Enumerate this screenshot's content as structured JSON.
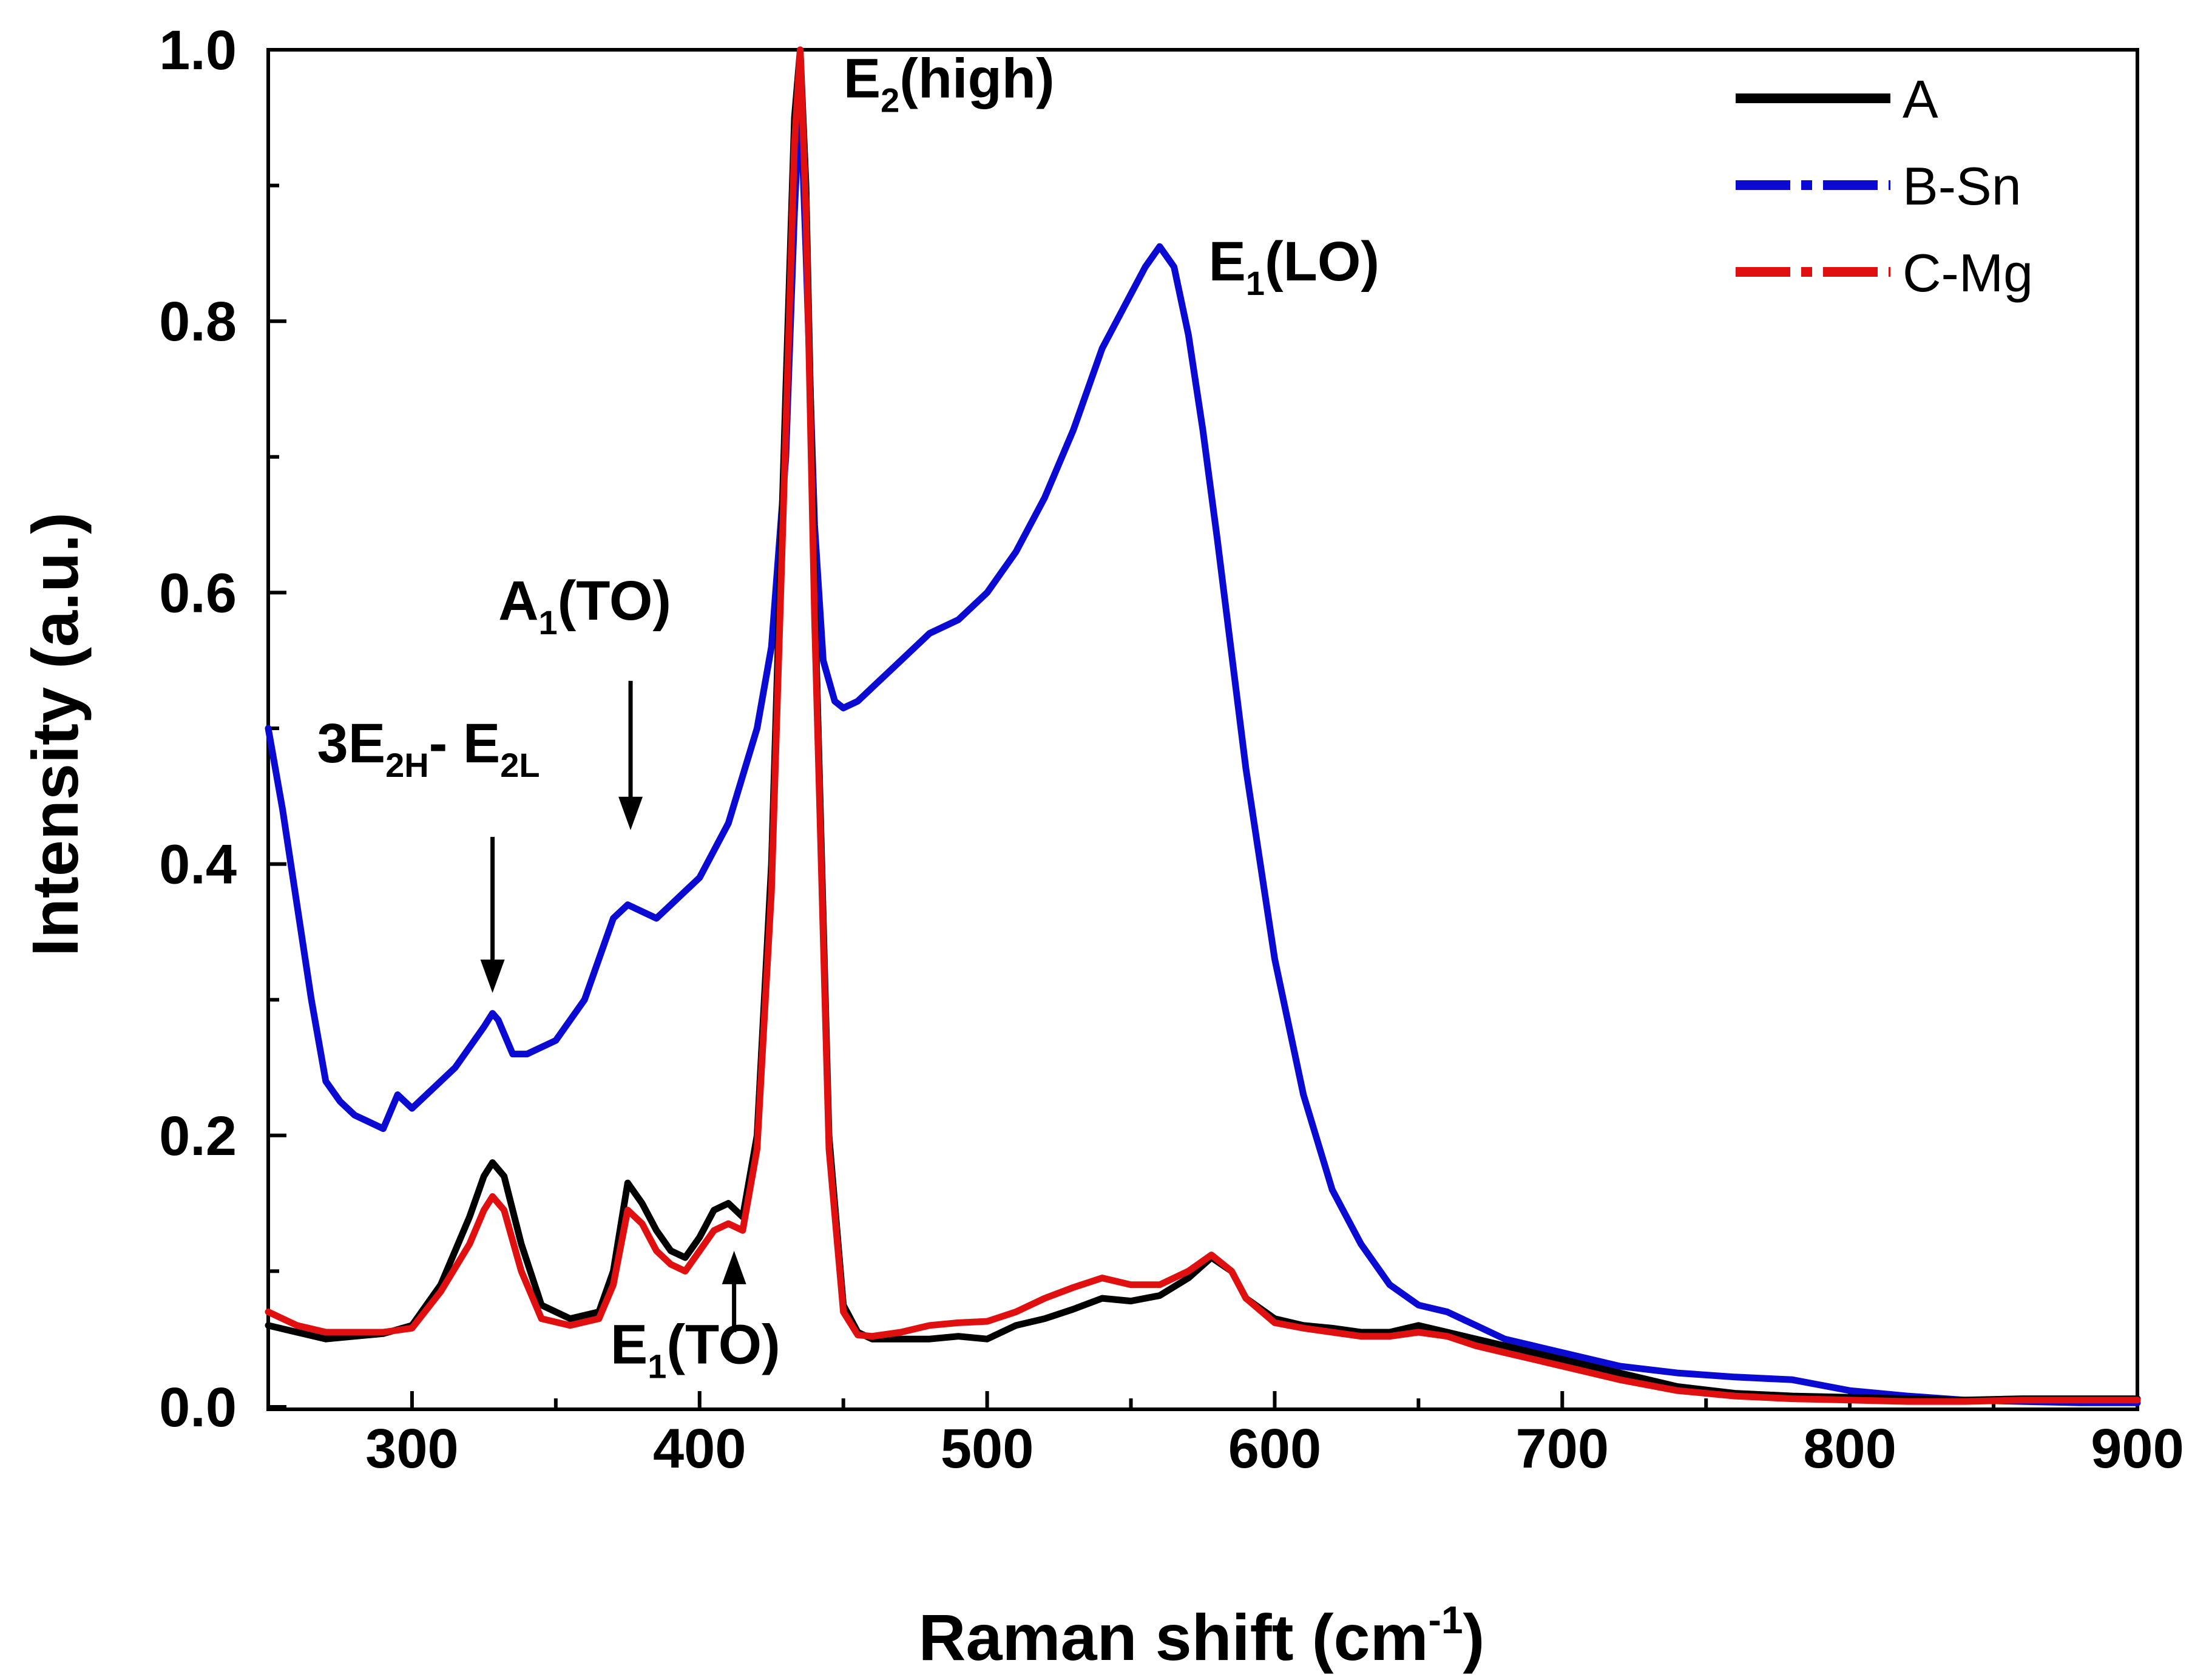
{
  "chart_data": {
    "type": "line",
    "title": "",
    "xlabel": "Raman shift (cm",
    "xlabel_sup": "-1",
    "xlabel_close": ")",
    "ylabel": "Intensity (a.u.)",
    "xlim": [
      250,
      900
    ],
    "ylim": [
      0.0,
      1.0
    ],
    "xticks": [
      300,
      400,
      500,
      600,
      700,
      800,
      900
    ],
    "xtick_labels": [
      "300",
      "400",
      "500",
      "600",
      "700",
      "800",
      "900"
    ],
    "yticks": [
      0.0,
      0.2,
      0.4,
      0.6,
      0.8,
      1.0
    ],
    "ytick_labels": [
      "0.0",
      "0.2",
      "0.4",
      "0.6",
      "0.8",
      "1.0"
    ],
    "legend_position": "top-right",
    "series": [
      {
        "name": "A",
        "color": "#000000",
        "style": "solid",
        "x": [
          250,
          260,
          270,
          280,
          290,
          300,
          310,
          320,
          325,
          328,
          332,
          338,
          345,
          355,
          365,
          370,
          375,
          380,
          385,
          390,
          395,
          400,
          405,
          410,
          415,
          420,
          425,
          430,
          433,
          435,
          437,
          440,
          445,
          450,
          455,
          460,
          470,
          480,
          490,
          500,
          510,
          520,
          530,
          540,
          550,
          560,
          570,
          578,
          585,
          590,
          600,
          610,
          620,
          630,
          640,
          650,
          660,
          670,
          680,
          690,
          700,
          720,
          740,
          760,
          780,
          800,
          820,
          840,
          860,
          880,
          900
        ],
        "y": [
          0.06,
          0.055,
          0.05,
          0.052,
          0.054,
          0.06,
          0.09,
          0.14,
          0.17,
          0.18,
          0.17,
          0.12,
          0.075,
          0.065,
          0.07,
          0.1,
          0.165,
          0.15,
          0.13,
          0.115,
          0.11,
          0.125,
          0.145,
          0.15,
          0.14,
          0.2,
          0.4,
          0.75,
          0.95,
          1.0,
          0.9,
          0.6,
          0.2,
          0.075,
          0.055,
          0.05,
          0.05,
          0.05,
          0.052,
          0.05,
          0.06,
          0.065,
          0.072,
          0.08,
          0.078,
          0.082,
          0.095,
          0.11,
          0.1,
          0.08,
          0.065,
          0.06,
          0.058,
          0.055,
          0.055,
          0.06,
          0.055,
          0.05,
          0.045,
          0.04,
          0.035,
          0.025,
          0.015,
          0.01,
          0.008,
          0.007,
          0.006,
          0.005,
          0.006,
          0.006,
          0.006
        ]
      },
      {
        "name": "B-Sn",
        "color": "#0a0ad2",
        "style": "dash-dot",
        "x": [
          250,
          255,
          260,
          265,
          270,
          275,
          280,
          285,
          290,
          295,
          300,
          305,
          310,
          315,
          320,
          325,
          328,
          330,
          335,
          340,
          350,
          360,
          365,
          370,
          375,
          380,
          385,
          390,
          395,
          400,
          410,
          420,
          425,
          430,
          433,
          435,
          437,
          440,
          443,
          447,
          450,
          455,
          460,
          470,
          480,
          490,
          500,
          510,
          520,
          530,
          540,
          550,
          555,
          560,
          565,
          570,
          575,
          580,
          590,
          600,
          610,
          620,
          630,
          640,
          650,
          660,
          670,
          680,
          690,
          700,
          720,
          740,
          760,
          780,
          800,
          820,
          840,
          860,
          880,
          900
        ],
        "y": [
          0.5,
          0.44,
          0.37,
          0.3,
          0.24,
          0.225,
          0.215,
          0.21,
          0.205,
          0.23,
          0.22,
          0.23,
          0.24,
          0.25,
          0.265,
          0.28,
          0.29,
          0.285,
          0.26,
          0.26,
          0.27,
          0.3,
          0.33,
          0.36,
          0.37,
          0.365,
          0.36,
          0.37,
          0.38,
          0.39,
          0.43,
          0.5,
          0.56,
          0.7,
          0.88,
          0.97,
          0.85,
          0.65,
          0.55,
          0.52,
          0.515,
          0.52,
          0.53,
          0.55,
          0.57,
          0.58,
          0.6,
          0.63,
          0.67,
          0.72,
          0.78,
          0.82,
          0.84,
          0.855,
          0.84,
          0.79,
          0.72,
          0.64,
          0.47,
          0.33,
          0.23,
          0.16,
          0.12,
          0.09,
          0.075,
          0.07,
          0.06,
          0.05,
          0.045,
          0.04,
          0.03,
          0.025,
          0.022,
          0.02,
          0.012,
          0.008,
          0.005,
          0.004,
          0.003,
          0.003
        ]
      },
      {
        "name": "C-Mg",
        "color": "#e01010",
        "style": "dash-dot",
        "x": [
          250,
          260,
          270,
          280,
          290,
          300,
          310,
          320,
          325,
          328,
          332,
          338,
          345,
          355,
          365,
          370,
          375,
          380,
          385,
          390,
          395,
          400,
          405,
          410,
          415,
          420,
          425,
          430,
          433,
          435,
          437,
          440,
          445,
          450,
          455,
          460,
          470,
          480,
          490,
          500,
          510,
          520,
          530,
          540,
          550,
          560,
          570,
          578,
          585,
          590,
          600,
          610,
          620,
          630,
          640,
          650,
          660,
          670,
          680,
          690,
          700,
          720,
          740,
          760,
          780,
          800,
          820,
          840,
          860,
          880,
          900
        ],
        "y": [
          0.07,
          0.06,
          0.055,
          0.055,
          0.055,
          0.058,
          0.085,
          0.12,
          0.145,
          0.155,
          0.145,
          0.1,
          0.065,
          0.06,
          0.065,
          0.09,
          0.145,
          0.135,
          0.115,
          0.105,
          0.1,
          0.115,
          0.13,
          0.135,
          0.13,
          0.19,
          0.38,
          0.72,
          0.93,
          1.0,
          0.88,
          0.58,
          0.19,
          0.07,
          0.053,
          0.052,
          0.055,
          0.06,
          0.062,
          0.063,
          0.07,
          0.08,
          0.088,
          0.095,
          0.09,
          0.09,
          0.1,
          0.112,
          0.1,
          0.08,
          0.062,
          0.058,
          0.055,
          0.052,
          0.052,
          0.055,
          0.052,
          0.045,
          0.04,
          0.035,
          0.03,
          0.02,
          0.012,
          0.008,
          0.006,
          0.005,
          0.004,
          0.004,
          0.005,
          0.005,
          0.005
        ]
      }
    ],
    "annotations": [
      {
        "base": "E",
        "sub": "2",
        "rest": "(high)",
        "x": 450,
        "y": 0.965
      },
      {
        "base": "E",
        "sub": "1",
        "rest": "(LO)",
        "x": 577,
        "y": 0.83
      },
      {
        "base": "A",
        "sub": "1",
        "rest": "(TO)",
        "x": 330,
        "y": 0.58
      },
      {
        "base": "3E",
        "sub": "2H",
        "rest": "- E",
        "sub2": "2L",
        "x": 267,
        "y": 0.475
      },
      {
        "base": "E",
        "sub": "1",
        "rest": "(TO)",
        "x": 369,
        "y": 0.032
      }
    ],
    "arrows": [
      {
        "x": 328,
        "y_start": 0.42,
        "y_end": 0.305
      },
      {
        "x": 376,
        "y_start": 0.535,
        "y_end": 0.425
      },
      {
        "x": 412,
        "y_start": 0.055,
        "y_end": 0.115
      }
    ]
  }
}
